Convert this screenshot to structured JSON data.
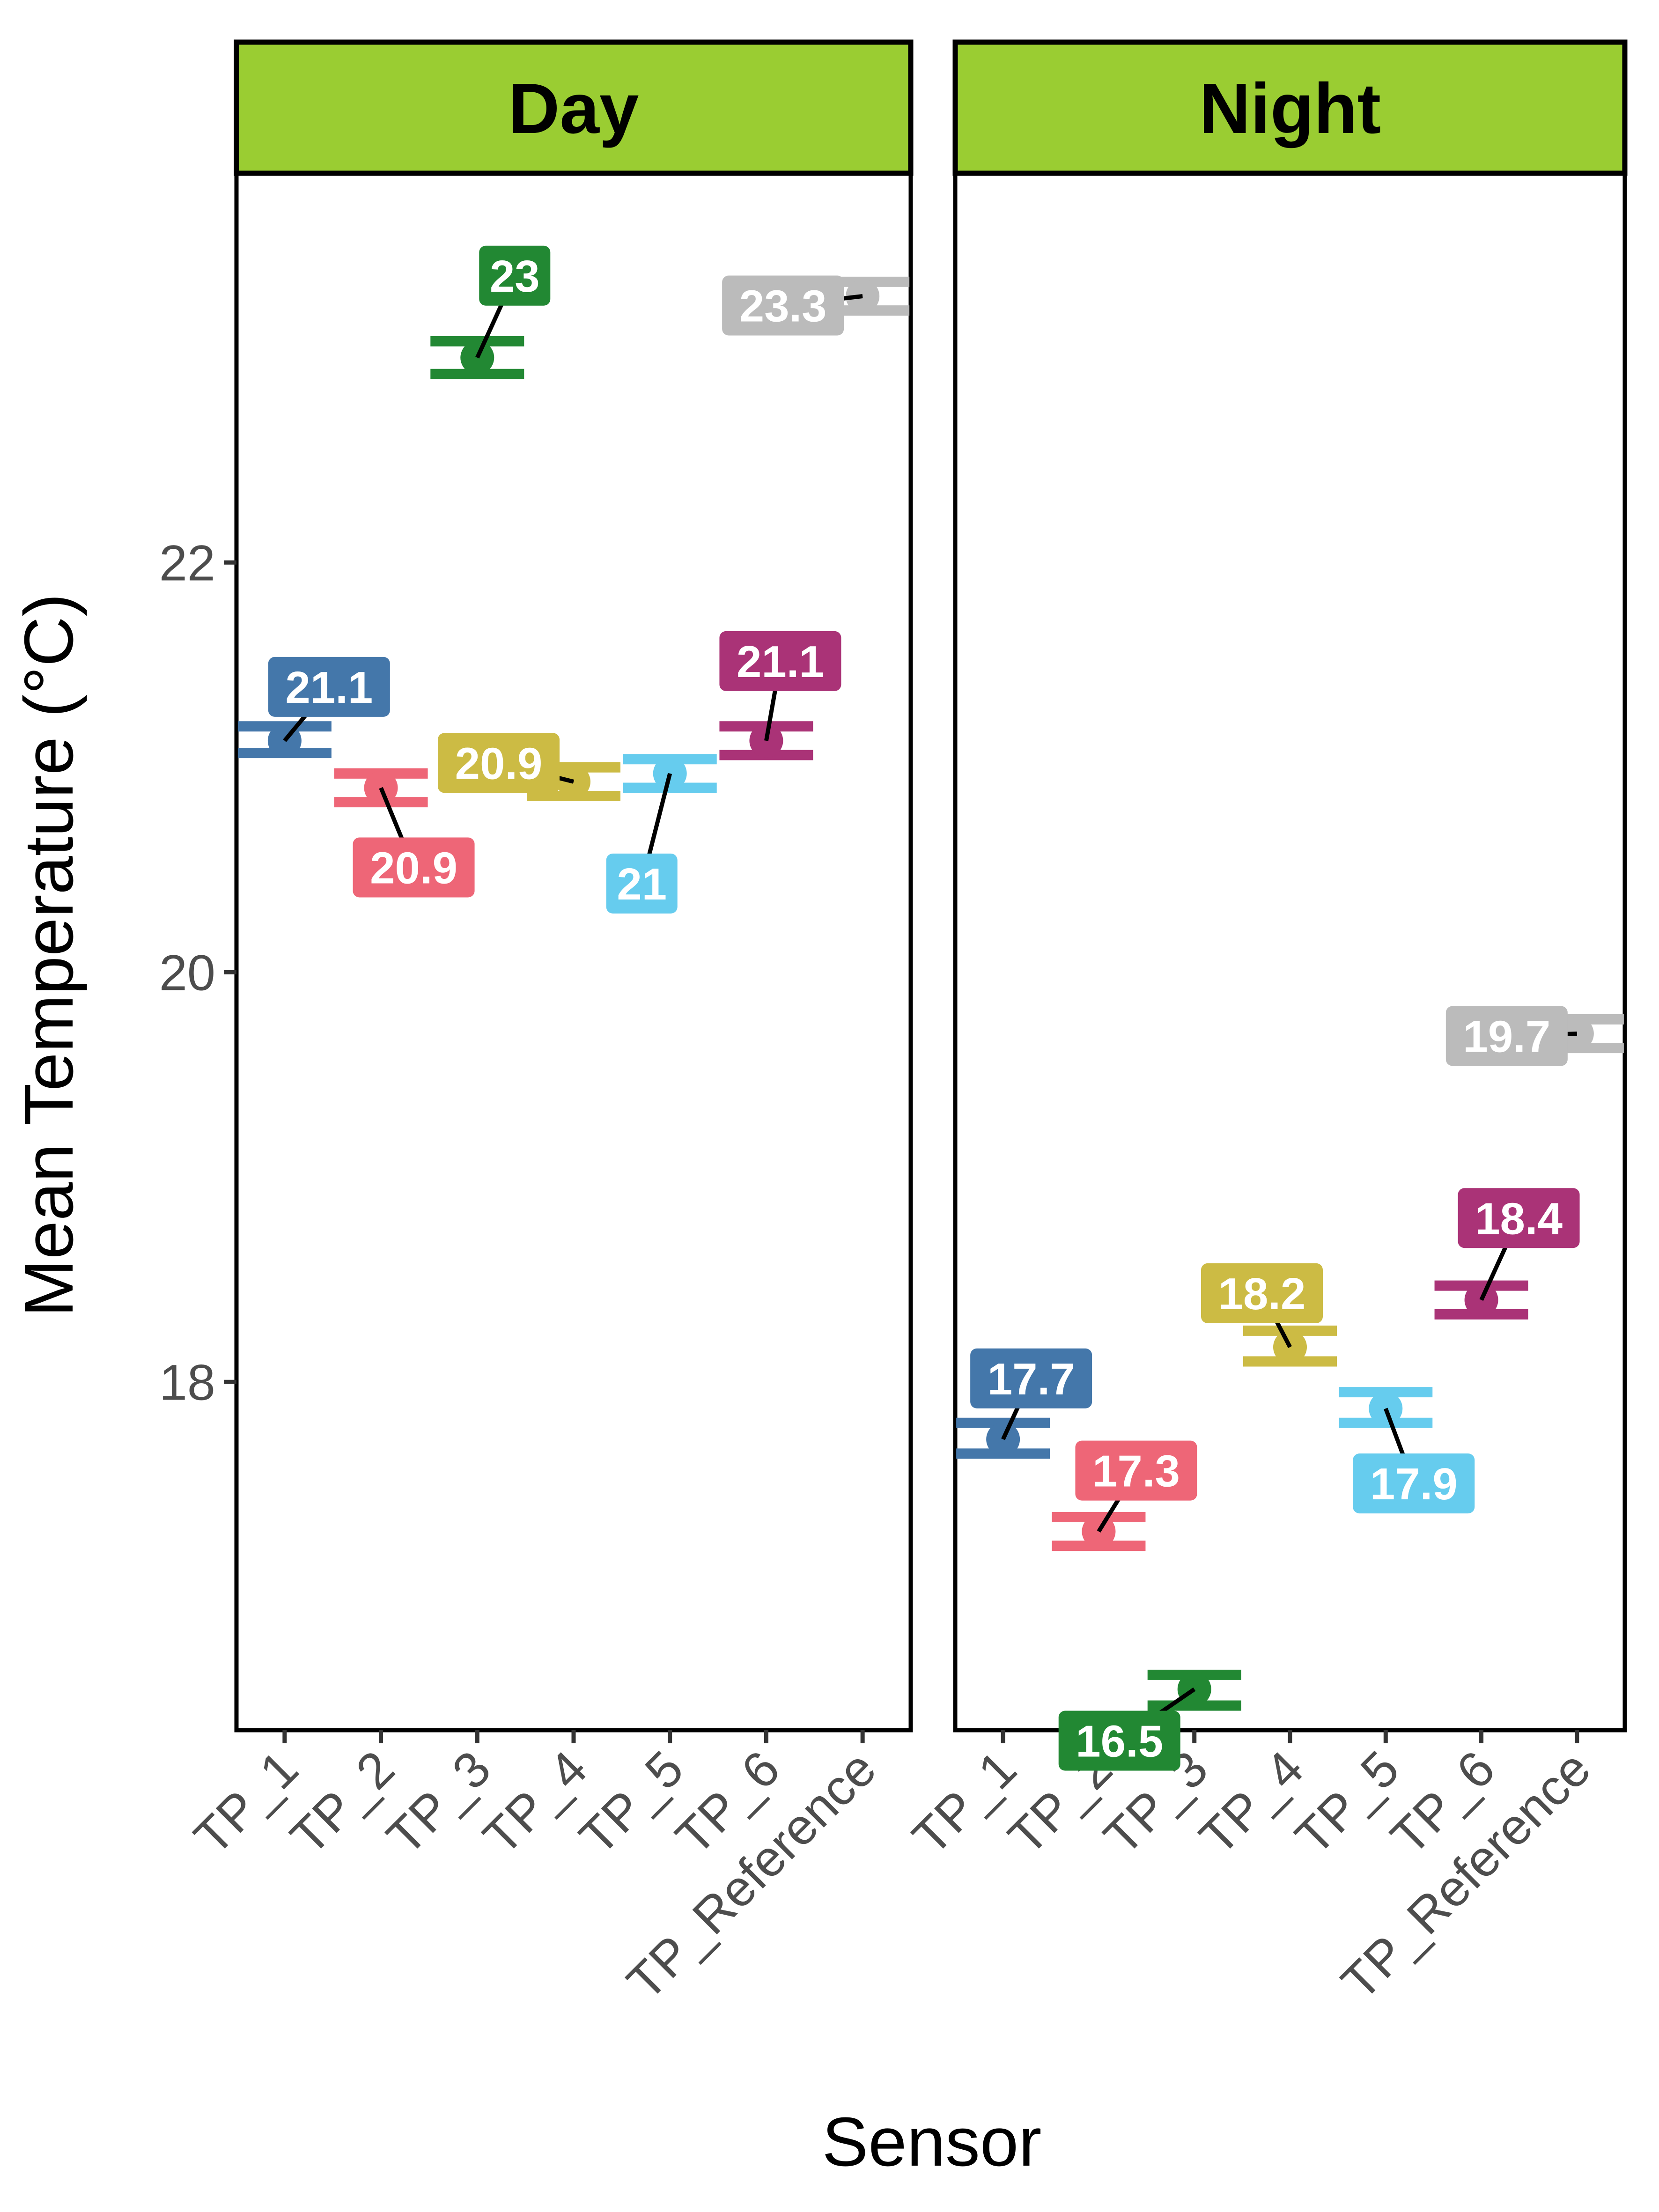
{
  "chart_data": {
    "type": "scatter",
    "xlabel": "Sensor",
    "ylabel": "Mean Temperature (°C)",
    "categories": [
      "TP_1",
      "TP_2",
      "TP_3",
      "TP_4",
      "TP_5",
      "TP_6",
      "TP_Reference"
    ],
    "y_ticks": [
      "18",
      "20",
      "22"
    ],
    "ylim": [
      16.3,
      23.9
    ],
    "error_bars": true,
    "grid": false,
    "colors": {
      "TP_1": "#4477aa",
      "TP_2": "#ee6677",
      "TP_3": "#228833",
      "TP_4": "#ccbb44",
      "TP_5": "#66ccee",
      "TP_6": "#aa3377",
      "TP_Reference": "#bbbbbb",
      "strip": "#9acd32"
    },
    "panels": [
      {
        "name": "Day",
        "points": [
          {
            "sensor": "TP_1",
            "value": 21.13,
            "low": 21.07,
            "high": 21.2,
            "label": "21.1"
          },
          {
            "sensor": "TP_2",
            "value": 20.9,
            "low": 20.83,
            "high": 20.97,
            "label": "20.9"
          },
          {
            "sensor": "TP_3",
            "value": 23.0,
            "low": 22.92,
            "high": 23.08,
            "label": "23"
          },
          {
            "sensor": "TP_4",
            "value": 20.93,
            "low": 20.86,
            "high": 21.0,
            "label": "20.9"
          },
          {
            "sensor": "TP_5",
            "value": 20.97,
            "low": 20.9,
            "high": 21.04,
            "label": "21"
          },
          {
            "sensor": "TP_6",
            "value": 21.13,
            "low": 21.06,
            "high": 21.2,
            "label": "21.1"
          },
          {
            "sensor": "TP_Reference",
            "value": 23.3,
            "low": 23.23,
            "high": 23.37,
            "label": "23.3"
          }
        ]
      },
      {
        "name": "Night",
        "points": [
          {
            "sensor": "TP_1",
            "value": 17.72,
            "low": 17.65,
            "high": 17.8,
            "label": "17.7"
          },
          {
            "sensor": "TP_2",
            "value": 17.27,
            "low": 17.2,
            "high": 17.34,
            "label": "17.3"
          },
          {
            "sensor": "TP_3",
            "value": 16.5,
            "low": 16.42,
            "high": 16.57,
            "label": "16.5"
          },
          {
            "sensor": "TP_4",
            "value": 18.17,
            "low": 18.1,
            "high": 18.25,
            "label": "18.2"
          },
          {
            "sensor": "TP_5",
            "value": 17.87,
            "low": 17.8,
            "high": 17.95,
            "label": "17.9"
          },
          {
            "sensor": "TP_6",
            "value": 18.4,
            "low": 18.33,
            "high": 18.47,
            "label": "18.4"
          },
          {
            "sensor": "TP_Reference",
            "value": 19.7,
            "low": 19.63,
            "high": 19.77,
            "label": "19.7"
          }
        ]
      }
    ]
  }
}
